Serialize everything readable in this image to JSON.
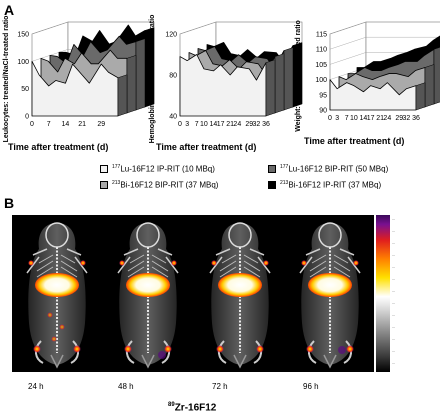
{
  "panels": {
    "a": "A",
    "b": "B"
  },
  "chart_data": [
    {
      "type": "area",
      "ylabel": "Leukocytes: treated/NaCl-treated ratio",
      "xlabel": "Time after treatment (d)",
      "x": [
        0,
        3,
        7,
        10,
        14,
        17,
        21,
        24,
        29,
        32,
        36
      ],
      "xticks": [
        "0",
        "7",
        "14",
        "21",
        "29"
      ],
      "yticks": [
        "0",
        "50",
        "100",
        "150"
      ],
      "ylim": [
        0,
        150
      ],
      "series": [
        {
          "color": "#f2f2f2",
          "values": [
            100,
            75,
            55,
            65,
            60,
            95,
            75,
            60,
            95,
            80,
            70
          ]
        },
        {
          "color": "#aaaaaa",
          "values": [
            100,
            95,
            75,
            100,
            90,
            110,
            90,
            90,
            115,
            100,
            100
          ]
        },
        {
          "color": "#6a6a6a",
          "values": [
            100,
            98,
            85,
            120,
            100,
            125,
            105,
            110,
            135,
            120,
            125
          ]
        },
        {
          "color": "#000000",
          "values": [
            100,
            100,
            95,
            130,
            120,
            140,
            115,
            120,
            150,
            130,
            140
          ]
        }
      ]
    },
    {
      "type": "area",
      "ylabel": "Hemoglobin: treated/NaCl-treated ratio",
      "xlabel": "Time after treatment (d)",
      "x": [
        0,
        3,
        7,
        10,
        14,
        17,
        21,
        24,
        29,
        32,
        36
      ],
      "xticks": [
        "0",
        "3",
        "7",
        "10",
        "14",
        "17",
        "21",
        "24",
        "29",
        "32",
        "36"
      ],
      "yticks": [
        "40",
        "80",
        "120"
      ],
      "ylim": [
        40,
        120
      ],
      "series": [
        {
          "color": "#f2f2f2",
          "values": [
            98,
            94,
            100,
            86,
            84,
            90,
            80,
            88,
            86,
            75,
            92
          ]
        },
        {
          "color": "#aaaaaa",
          "values": [
            99,
            96,
            101,
            88,
            86,
            92,
            83,
            90,
            88,
            78,
            95
          ]
        },
        {
          "color": "#6a6a6a",
          "values": [
            100,
            98,
            102,
            90,
            88,
            94,
            86,
            92,
            90,
            81,
            98
          ]
        },
        {
          "color": "#000000",
          "values": [
            101,
            99,
            103,
            92,
            90,
            96,
            88,
            94,
            93,
            84,
            100
          ]
        }
      ]
    },
    {
      "type": "area",
      "ylabel": "Weight: treated/NaCl-treated ratio",
      "xlabel": "Time after treatment (d)",
      "x": [
        0,
        3,
        7,
        10,
        14,
        17,
        21,
        24,
        29,
        32,
        36
      ],
      "xticks": [
        "0",
        "3",
        "7",
        "10",
        "14",
        "17",
        "21",
        "24",
        "29",
        "32",
        "36"
      ],
      "yticks": [
        "90",
        "95",
        "100",
        "105",
        "110",
        "115"
      ],
      "ylim": [
        90,
        115
      ],
      "series": [
        {
          "color": "#f2f2f2",
          "values": [
            100,
            97,
            99,
            98,
            96,
            98,
            97,
            99,
            95,
            97,
            98
          ]
        },
        {
          "color": "#aaaaaa",
          "values": [
            100,
            99,
            101,
            100,
            99,
            100,
            101,
            101,
            100,
            102,
            103
          ]
        },
        {
          "color": "#6a6a6a",
          "values": [
            100,
            100,
            102,
            101,
            101,
            102,
            103,
            104,
            104,
            106,
            108
          ]
        },
        {
          "color": "#000000",
          "values": [
            101,
            101,
            103,
            103,
            104,
            105,
            106,
            107,
            108,
            110,
            112
          ]
        }
      ]
    }
  ],
  "legend": [
    {
      "iso": "177",
      "label": "Lu-16F12 IP-RIT (10 MBq)",
      "color": "#f2f2f2"
    },
    {
      "iso": "177",
      "label": "Lu-16F12 BIP-RIT (50 MBq)",
      "color": "#6a6a6a"
    },
    {
      "iso": "213",
      "label": "Bi-16F12 BIP-RIT (37 MBq)",
      "color": "#aaaaaa"
    },
    {
      "iso": "213",
      "label": "Bi-16F12 IP-RIT (37 MBq)",
      "color": "#000000"
    }
  ],
  "imaging": {
    "timepoints": [
      "24 h",
      "48 h",
      "72 h",
      "96 h"
    ],
    "tracer_iso": "89",
    "tracer_label": "Zr-16F12"
  }
}
